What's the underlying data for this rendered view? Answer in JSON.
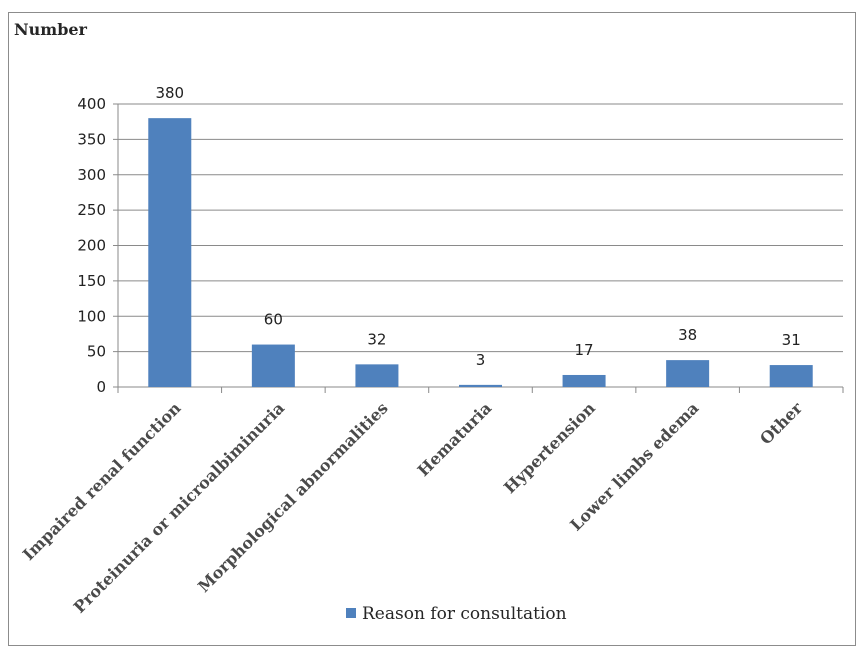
{
  "chart_data": {
    "type": "bar",
    "ylabel": "Number",
    "xlabel": "",
    "categories": [
      "Impaired renal function",
      "Proteinuria or microalbiminuria",
      "Morphological abnormalities",
      "Hematuria",
      "Hypertension",
      "Lower limbs edema",
      "Other"
    ],
    "series": [
      {
        "name": "Reason for consultation",
        "values": [
          380,
          60,
          32,
          3,
          17,
          38,
          31
        ],
        "data_labels": [
          "380",
          "60",
          "32",
          "3",
          "17",
          "38",
          "31"
        ],
        "color": "#4f81bd"
      }
    ],
    "ylim": [
      0,
      400
    ],
    "yticks": [
      "0",
      "50",
      "100",
      "150",
      "200",
      "250",
      "300",
      "350",
      "400"
    ],
    "grid": true,
    "legend_position": "bottom"
  }
}
